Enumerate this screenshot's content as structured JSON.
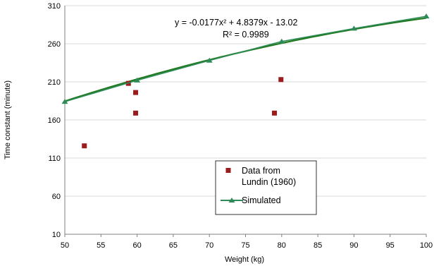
{
  "chart_data": {
    "type": "scatter",
    "title": "",
    "xlabel": "Weight (kg)",
    "ylabel": "Time constant (minute)",
    "xlim": [
      50,
      100
    ],
    "ylim": [
      10,
      310
    ],
    "xticks": [
      50,
      55,
      60,
      65,
      70,
      75,
      80,
      85,
      90,
      95,
      100
    ],
    "yticks": [
      10,
      60,
      110,
      160,
      210,
      260,
      310
    ],
    "grid": "horizontal",
    "legend_position": "center-bottom",
    "series": [
      {
        "name": "Data from Lundin (1960)",
        "kind": "scatter",
        "marker": "square",
        "color": "#9b1c1c",
        "x": [
          52.7,
          58.8,
          59.8,
          59.8,
          79.0,
          79.9
        ],
        "y": [
          126,
          208,
          196,
          169,
          169,
          213
        ]
      },
      {
        "name": "Simulated",
        "kind": "line",
        "marker": "triangle",
        "color": "#2e8b57",
        "x": [
          50,
          60,
          70,
          80,
          90,
          100
        ],
        "y": [
          184,
          212,
          238,
          263,
          280,
          296
        ]
      }
    ],
    "trendline": {
      "kind": "polynomial",
      "color": "#1f7a1f",
      "coefficients": [
        -0.0177,
        4.8379,
        -13.02
      ],
      "equation": "y = -0.0177x² + 4.8379x - 13.02",
      "r_squared": "R² = 0.9989"
    }
  }
}
